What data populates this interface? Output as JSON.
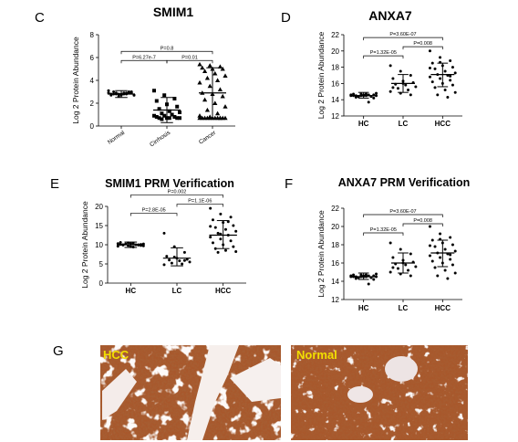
{
  "panel_letters": [
    "C",
    "D",
    "E",
    "F",
    "G"
  ],
  "chart_data": [
    {
      "type": "scatter",
      "panel": "C",
      "title": "SMIM1",
      "ylabel": "Log 2 Protein Abundance",
      "categories": [
        "Normal",
        "Cirrhosis",
        "Cancer"
      ],
      "ylim": [
        0,
        8
      ],
      "yticks": [
        0,
        2,
        4,
        6,
        8
      ],
      "markers": [
        "circle",
        "square",
        "triangle"
      ],
      "summary": [
        {
          "mean": 2.8,
          "sd_low": 2.5,
          "sd_high": 3.1
        },
        {
          "mean": 1.4,
          "sd_low": 0.3,
          "sd_high": 2.5
        },
        {
          "mean": 2.9,
          "sd_low": 0.7,
          "sd_high": 5.1
        }
      ],
      "points": [
        [
          2.9,
          2.8,
          3.0,
          2.7,
          2.8,
          2.9,
          3.0,
          2.8,
          2.7,
          2.9,
          2.8,
          3.1,
          2.6,
          2.9,
          2.8,
          2.7,
          3.0,
          2.8,
          2.9,
          2.7,
          2.8,
          2.9
        ],
        [
          3.1,
          2.7,
          2.4,
          2.2,
          1.9,
          1.7,
          1.5,
          1.3,
          1.2,
          1.1,
          1.0,
          0.9,
          0.9,
          0.8,
          0.8,
          0.7,
          0.7,
          0.7,
          0.7,
          0.7,
          0.6
        ],
        [
          5.4,
          5.3,
          5.2,
          5.1,
          5.0,
          5.0,
          4.8,
          4.6,
          4.4,
          4.2,
          4.0,
          3.8,
          3.5,
          3.2,
          2.9,
          2.8,
          2.6,
          2.3,
          2.0,
          1.7,
          1.4,
          1.1,
          0.9,
          0.8,
          0.7,
          0.7,
          0.7,
          0.7,
          0.7,
          0.7,
          0.7,
          0.7,
          0.7,
          0.7,
          0.7,
          0.7
        ]
      ],
      "comparisons": [
        {
          "from": 0,
          "to": 2,
          "label": "P=0.8",
          "level": 1
        },
        {
          "from": 0,
          "to": 1,
          "label": "P=6.27e-7",
          "level": 0
        },
        {
          "from": 1,
          "to": 2,
          "label": "P=0.01",
          "level": 0
        }
      ]
    },
    {
      "type": "scatter",
      "panel": "D",
      "title": "ANXA7",
      "ylabel": "Log 2 Protein Abundance",
      "categories": [
        "HC",
        "LC",
        "HCC"
      ],
      "ylim": [
        12,
        22
      ],
      "yticks": [
        12,
        14,
        16,
        18,
        20,
        22
      ],
      "markers": [
        "circle",
        "circle",
        "circle"
      ],
      "summary": [
        {
          "mean": 14.5,
          "sd_low": 14.2,
          "sd_high": 14.9
        },
        {
          "mean": 16.0,
          "sd_low": 14.9,
          "sd_high": 17.1
        },
        {
          "mean": 17.1,
          "sd_low": 15.6,
          "sd_high": 18.5
        }
      ],
      "points": [
        [
          14.6,
          14.5,
          14.4,
          14.7,
          14.5,
          14.6,
          14.3,
          14.5,
          14.8,
          14.4,
          14.6,
          14.5,
          14.7,
          14.4,
          14.5,
          14.6,
          14.2,
          14.5,
          14.7,
          14.5,
          14.4,
          13.7
        ],
        [
          18.2,
          17.5,
          17.0,
          16.6,
          16.3,
          16.1,
          15.9,
          15.8,
          15.6,
          15.4,
          15.2,
          15.0,
          14.8,
          14.6,
          15.5,
          16.0
        ],
        [
          20.0,
          19.2,
          18.8,
          18.5,
          18.2,
          18.0,
          17.8,
          17.5,
          17.3,
          17.1,
          17.0,
          16.8,
          16.6,
          16.4,
          16.2,
          16.0,
          15.8,
          15.5,
          15.2,
          14.9,
          14.6,
          14.3,
          17.9,
          18.6,
          16.9
        ]
      ],
      "comparisons": [
        {
          "from": 0,
          "to": 2,
          "label": "P=3.60E-07",
          "level": 2
        },
        {
          "from": 0,
          "to": 1,
          "label": "P=1.32E-05",
          "level": 0
        },
        {
          "from": 1,
          "to": 2,
          "label": "P=0.008",
          "level": 1
        }
      ]
    },
    {
      "type": "scatter",
      "panel": "E",
      "title": "SMIM1 PRM Verification",
      "ylabel": "Log 2 Protein Abundance",
      "categories": [
        "HC",
        "LC",
        "HCC"
      ],
      "ylim": [
        0,
        20
      ],
      "yticks": [
        0,
        5,
        10,
        15,
        20
      ],
      "markers": [
        "circle",
        "circle",
        "circle"
      ],
      "summary": [
        {
          "mean": 10.0,
          "sd_low": 9.3,
          "sd_high": 10.7
        },
        {
          "mean": 6.5,
          "sd_low": 4.5,
          "sd_high": 9.2
        },
        {
          "mean": 12.5,
          "sd_low": 9.0,
          "sd_high": 16.3
        }
      ],
      "points": [
        [
          10.3,
          9.8,
          10.0,
          10.6,
          9.5,
          10.1,
          9.9,
          10.4,
          9.7,
          10.2,
          10.0,
          9.6,
          10.5,
          9.9,
          10.1,
          10.3,
          9.8,
          10.0,
          9.4,
          10.2
        ],
        [
          13.0,
          9.5,
          8.0,
          7.0,
          6.5,
          6.2,
          6.0,
          5.8,
          5.5,
          5.2,
          5.0,
          4.8,
          6.8,
          5.9
        ],
        [
          19.5,
          18.0,
          17.2,
          16.5,
          15.8,
          15.0,
          14.5,
          14.0,
          13.5,
          13.0,
          12.5,
          12.0,
          11.5,
          11.0,
          10.5,
          10.0,
          9.5,
          9.0,
          8.5,
          8.2,
          8.0,
          16.0,
          14.8,
          12.8
        ]
      ],
      "comparisons": [
        {
          "from": 0,
          "to": 2,
          "label": "P=0.002",
          "level": 2
        },
        {
          "from": 0,
          "to": 1,
          "label": "P=2.8E-05",
          "level": 0
        },
        {
          "from": 1,
          "to": 2,
          "label": "P=1.1E-06",
          "level": 1
        }
      ]
    },
    {
      "type": "scatter",
      "panel": "F",
      "title": "ANXA7 PRM Verification",
      "ylabel": "Log 2 Protein Abundance",
      "categories": [
        "HC",
        "LC",
        "HCC"
      ],
      "ylim": [
        12,
        22
      ],
      "yticks": [
        12,
        14,
        16,
        18,
        20,
        22
      ],
      "markers": [
        "circle",
        "circle",
        "circle"
      ],
      "summary": [
        {
          "mean": 14.5,
          "sd_low": 14.2,
          "sd_high": 14.9
        },
        {
          "mean": 16.0,
          "sd_low": 14.9,
          "sd_high": 17.1
        },
        {
          "mean": 17.1,
          "sd_low": 15.6,
          "sd_high": 18.5
        }
      ],
      "points": [
        [
          14.6,
          14.5,
          14.4,
          14.7,
          14.5,
          14.6,
          14.3,
          14.5,
          14.8,
          14.4,
          14.6,
          14.5,
          14.7,
          14.4,
          14.5,
          14.6,
          14.2,
          14.5,
          14.7,
          14.5,
          14.4,
          13.7
        ],
        [
          18.2,
          17.5,
          17.0,
          16.6,
          16.3,
          16.1,
          15.9,
          15.8,
          15.6,
          15.4,
          15.2,
          15.0,
          14.8,
          14.6,
          15.5,
          16.0
        ],
        [
          20.0,
          19.2,
          18.8,
          18.5,
          18.2,
          18.0,
          17.8,
          17.5,
          17.3,
          17.1,
          17.0,
          16.8,
          16.6,
          16.4,
          16.2,
          16.0,
          15.8,
          15.5,
          15.2,
          14.9,
          14.6,
          14.3,
          17.9,
          18.6,
          16.9
        ]
      ],
      "comparisons": [
        {
          "from": 0,
          "to": 2,
          "label": "P=3.60E-07",
          "level": 2
        },
        {
          "from": 0,
          "to": 1,
          "label": "P=1.32E-05",
          "level": 0
        },
        {
          "from": 1,
          "to": 2,
          "label": "P=0.008",
          "level": 1
        }
      ]
    }
  ],
  "histology": {
    "left_label": "HCC",
    "right_label": "Normal",
    "tissue_color": "#a8582c",
    "label_color": "#f2df00"
  }
}
